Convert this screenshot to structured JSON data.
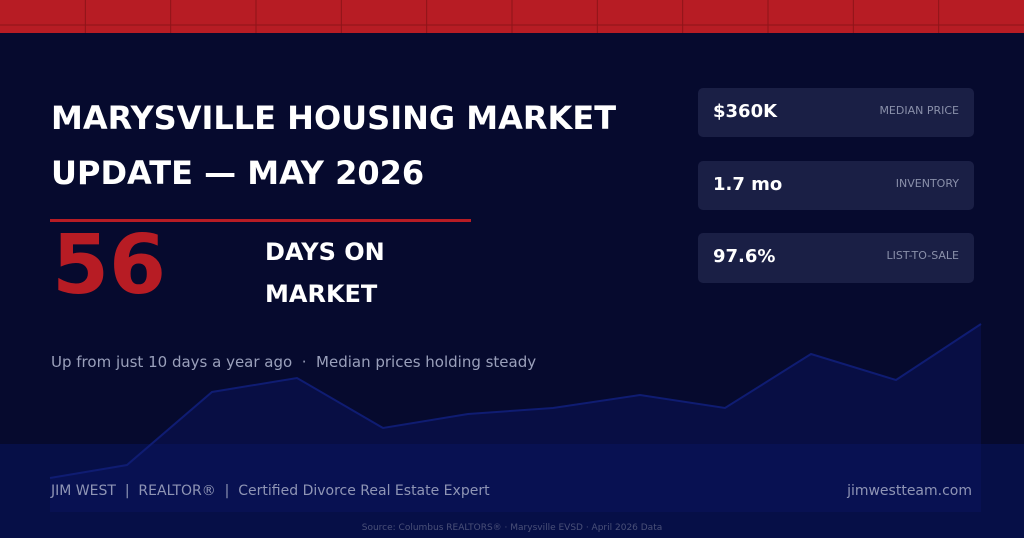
{
  "title_lines": [
    "MARYSVILLE HOUSING MARKET",
    "UPDATE — MAY 2026"
  ],
  "hero": {
    "number": 56,
    "label_lines": [
      "DAYS ON",
      "MARKET"
    ]
  },
  "subtitle": "Up from just 10 days a year ago  ·  Median prices holding steady",
  "stats": [
    {
      "value": "$360K",
      "label": "MEDIAN PRICE"
    },
    {
      "value": "1.7 mo",
      "label": "INVENTORY"
    },
    {
      "value": "97.6%",
      "label": "LIST-TO-SALE"
    }
  ],
  "footer": {
    "left": "JIM WEST  |  REALTOR®  |  Certified Divorce Real Estate Expert",
    "right": "jimwestteam.com"
  },
  "source": "Source: Columbus REALTORS® · Marysville EVSD · April 2026 Data"
}
